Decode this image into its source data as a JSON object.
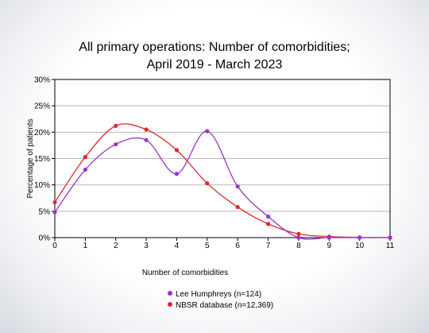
{
  "chart_data": {
    "type": "line",
    "title_lines": [
      "All primary operations: Number of comorbidities;",
      "April 2019 - March 2023"
    ],
    "xlabel": "Number of comorbidities",
    "ylabel": "Percentage of patients",
    "x": [
      0,
      1,
      2,
      3,
      4,
      5,
      6,
      7,
      8,
      9,
      10,
      11
    ],
    "xlim": [
      0,
      11
    ],
    "ylim": [
      0,
      30
    ],
    "y_ticks": [
      0,
      5,
      10,
      15,
      20,
      25,
      30
    ],
    "y_tick_labels": [
      "0%",
      "5%",
      "10%",
      "15%",
      "20%",
      "25%",
      "30%"
    ],
    "x_tick_labels": [
      "0",
      "1",
      "2",
      "3",
      "4",
      "5",
      "6",
      "7",
      "8",
      "9",
      "10",
      "11"
    ],
    "grid": true,
    "legend_position": "bottom",
    "series": [
      {
        "name": "Lee Humphreys (n=124)",
        "color": "#9933cc",
        "values": [
          4.8,
          12.9,
          17.7,
          18.5,
          12.1,
          20.2,
          9.7,
          4.0,
          0.0,
          0.0,
          0.0,
          0.0
        ]
      },
      {
        "name": "NBSR database (n=12,369)",
        "color": "#e0282c",
        "values": [
          6.7,
          15.3,
          21.2,
          20.5,
          16.6,
          10.3,
          5.8,
          2.6,
          0.7,
          0.2,
          0.05,
          0.02
        ]
      }
    ]
  }
}
